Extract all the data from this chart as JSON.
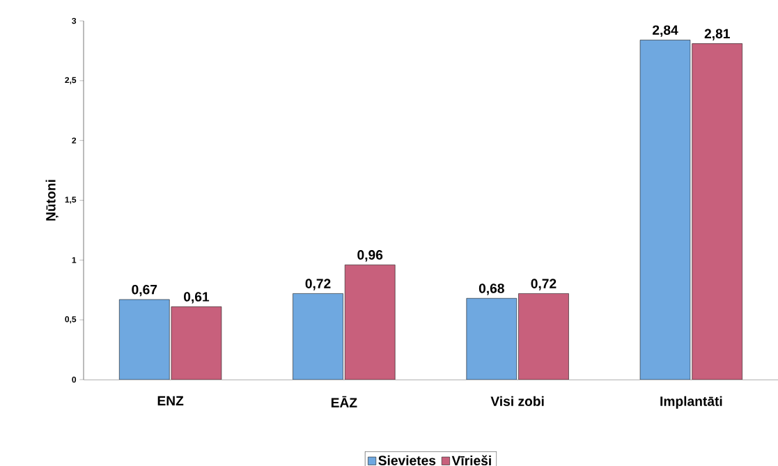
{
  "chart_data": {
    "type": "bar",
    "ylabel": "Ņūtoni",
    "categories": [
      "ENZ",
      "EĀZ",
      "Visi zobi",
      "Implantāti"
    ],
    "series": [
      {
        "name": "Sievietes",
        "color": "#6fa8e0",
        "values": [
          0.67,
          0.72,
          0.68,
          2.84
        ],
        "value_labels": [
          "0,67",
          "0,72",
          "0,68",
          "2,84"
        ]
      },
      {
        "name": "Vīrieši",
        "color": "#c8607c",
        "values": [
          0.61,
          0.96,
          0.72,
          2.81
        ],
        "value_labels": [
          "0,61",
          "0,96",
          "0,72",
          "2,81"
        ]
      }
    ],
    "ylim": [
      0,
      3
    ],
    "yticks": [
      0,
      {
        "value": 0.5,
        "label": "0,5"
      },
      1,
      {
        "value": 1.5,
        "label": "1,5"
      },
      2,
      {
        "value": 2.5,
        "label": "2,5"
      },
      3
    ],
    "legend": "bottom",
    "grid": false
  }
}
